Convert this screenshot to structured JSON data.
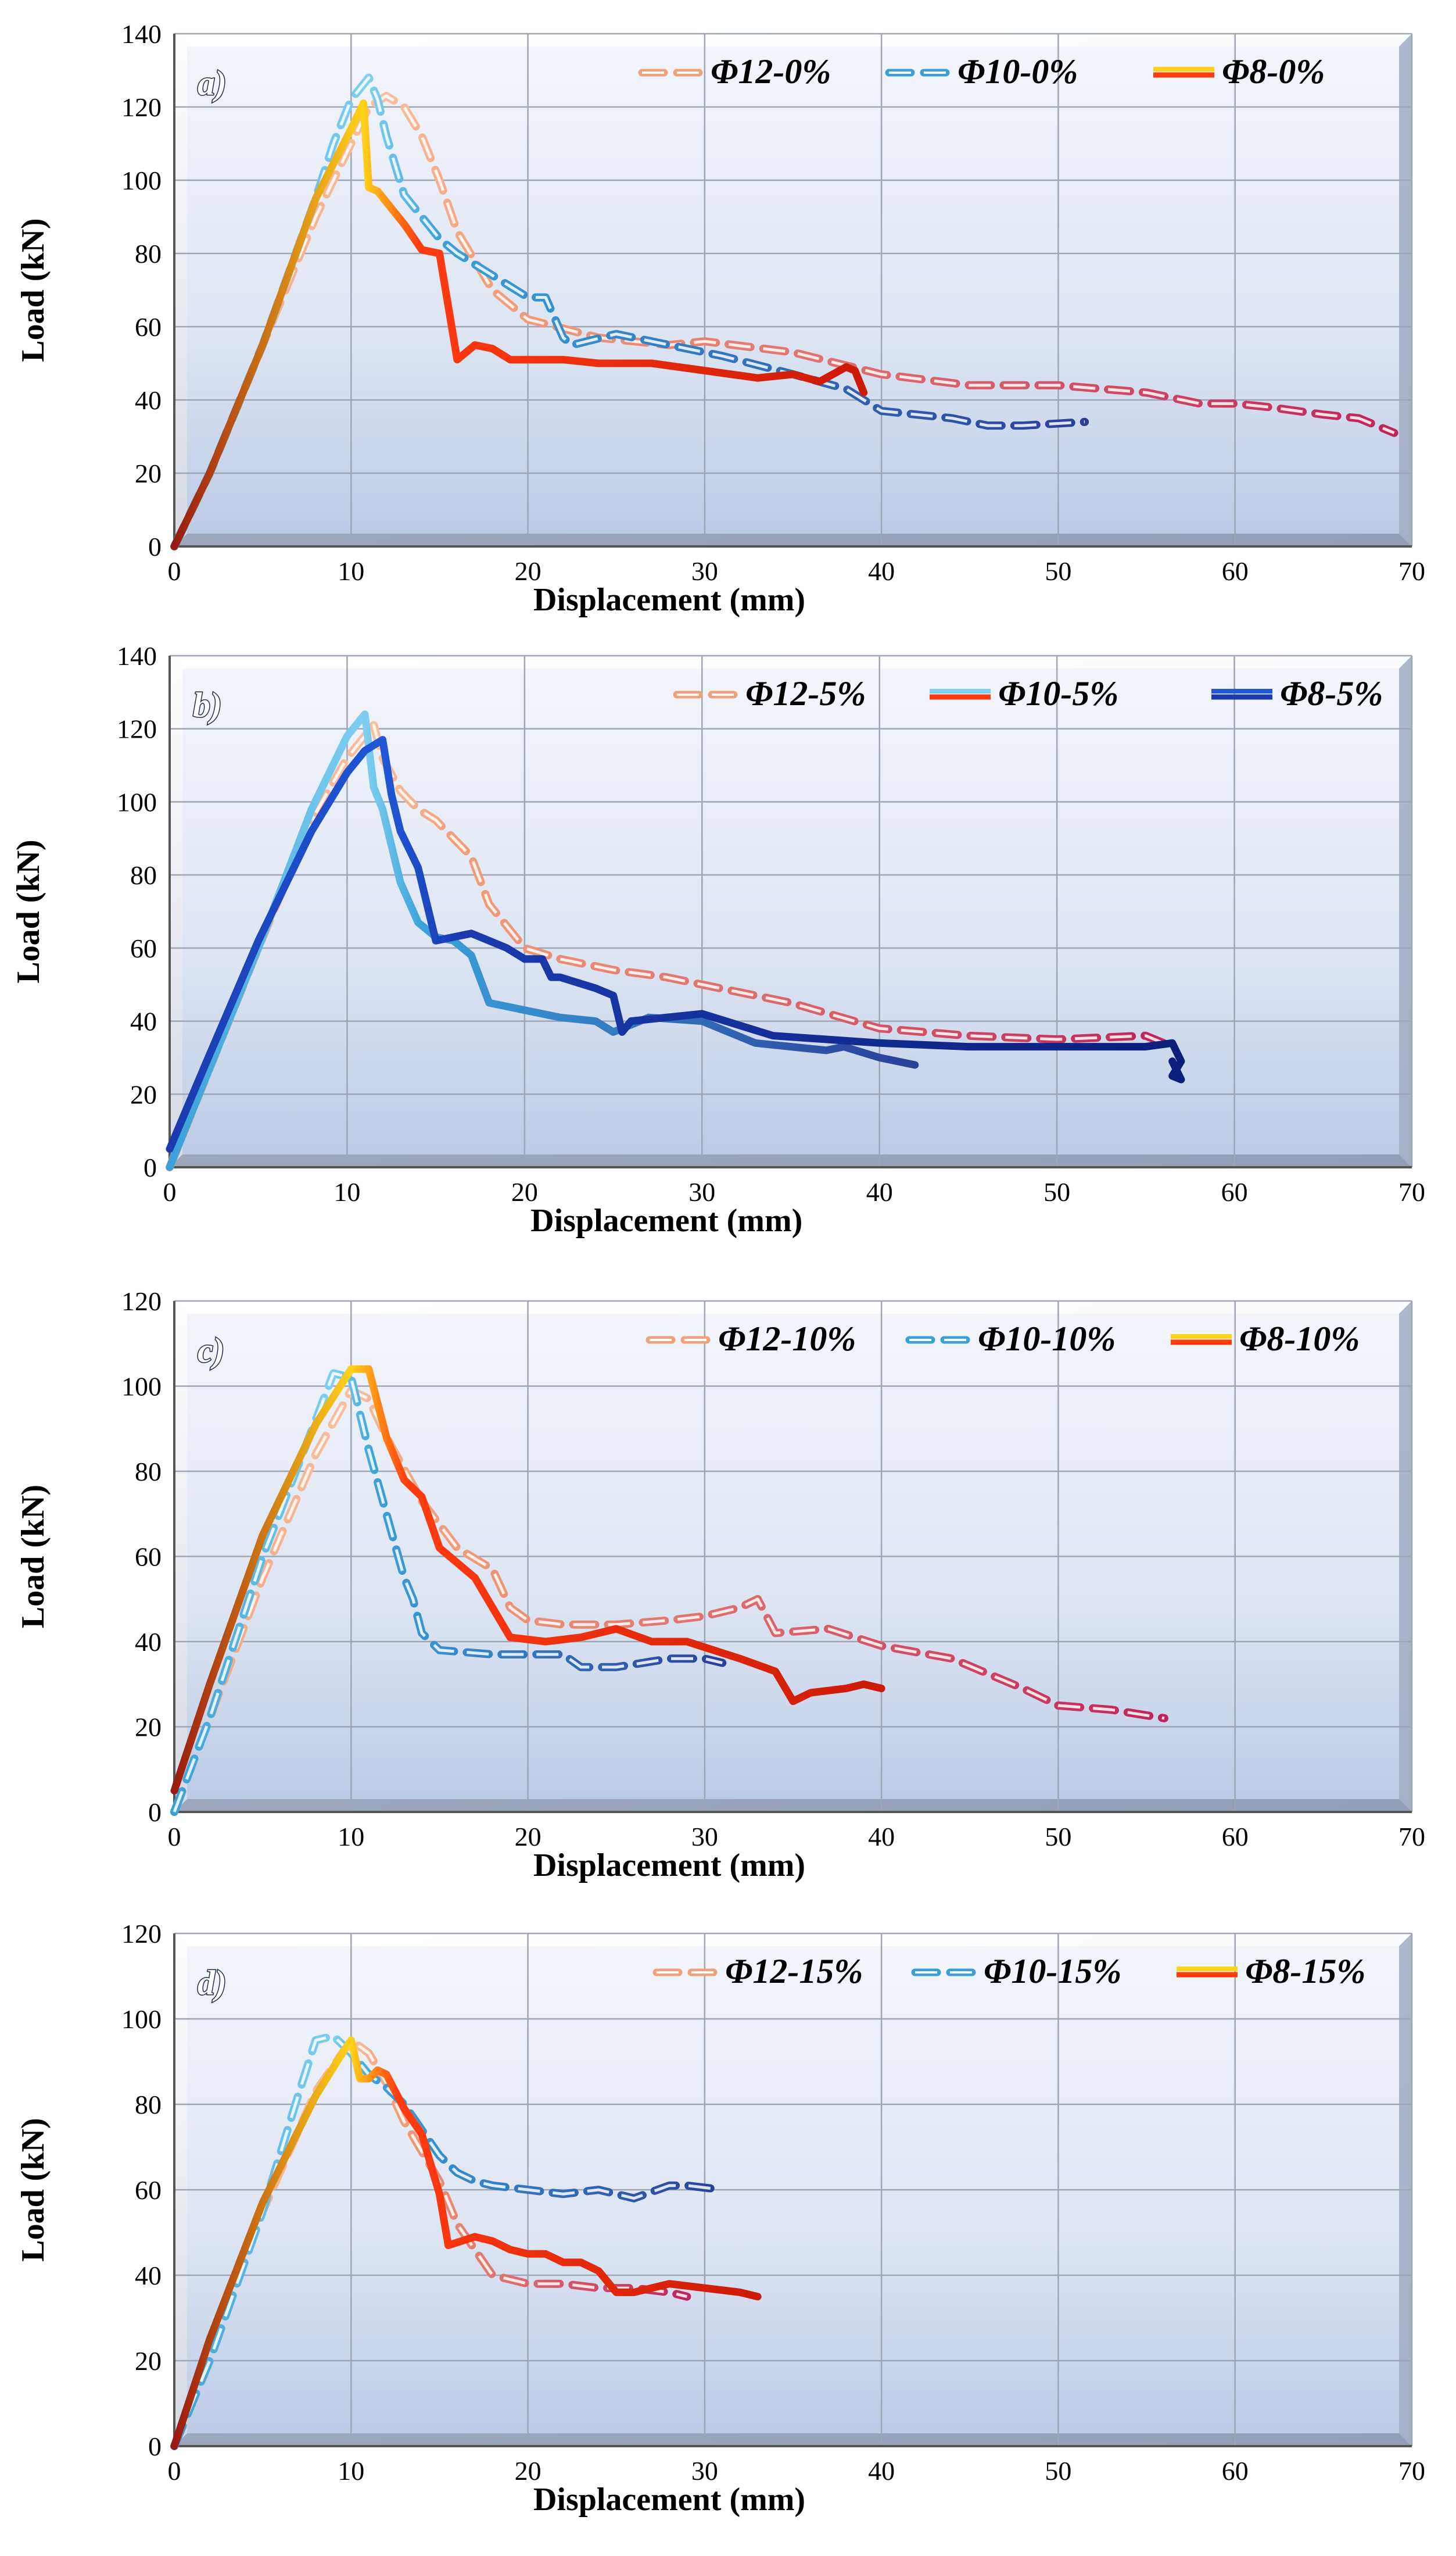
{
  "colors": {
    "plot_bg_top": "#eef2fa",
    "plot_bg_bottom": "#cfd9ec",
    "grid": "#9ea6b4",
    "phi12": "#f2a07a",
    "phi12_end": "#c0245a",
    "phi10": "#3aa0d8",
    "phi10_end": "#2a3f9a",
    "phi8": "#ff3b10",
    "phi8_peak": "#ffd21a",
    "phi8_5": "#1a2f9e"
  },
  "chart_data": [
    {
      "type": "line",
      "panel": "a)",
      "xlabel": "Displacement (mm)",
      "ylabel": "Load (kN)",
      "xlim": [
        0,
        70
      ],
      "ylim": [
        0,
        140
      ],
      "xticks": [
        "0",
        "10",
        "20",
        "30",
        "40",
        "50",
        "60",
        "70"
      ],
      "yticks": [
        "0",
        "20",
        "40",
        "60",
        "80",
        "100",
        "120",
        "140"
      ],
      "legend": [
        "Φ12-0%",
        "Φ10-0%",
        "Φ8-0%"
      ],
      "series": [
        {
          "name": "Φ12-0%",
          "style": "dashed",
          "x": [
            0,
            2,
            5,
            8,
            10,
            11,
            12,
            13,
            14,
            15,
            16,
            18,
            20,
            24,
            28,
            30,
            35,
            40,
            45,
            50,
            55,
            58,
            60,
            62,
            65,
            67,
            69
          ],
          "y": [
            0,
            20,
            55,
            90,
            110,
            120,
            123,
            120,
            112,
            100,
            86,
            70,
            62,
            57,
            55,
            56,
            53,
            47,
            44,
            44,
            42,
            39,
            39,
            38,
            36,
            35,
            31
          ]
        },
        {
          "name": "Φ10-0%",
          "style": "dashed",
          "x": [
            0,
            2,
            5,
            8,
            9,
            10,
            11,
            11.5,
            12,
            13,
            15,
            16,
            18,
            20,
            21,
            22,
            22.5,
            25,
            28,
            31,
            35,
            38,
            40,
            42,
            44,
            46,
            48,
            51.5
          ],
          "y": [
            0,
            20,
            55,
            95,
            110,
            122,
            128,
            122,
            112,
            96,
            84,
            80,
            74,
            68,
            68,
            57,
            55,
            58,
            55,
            52,
            47,
            43,
            37,
            36,
            35,
            33,
            33,
            34
          ]
        },
        {
          "name": "Φ8-0%",
          "style": "solid",
          "x": [
            0,
            2,
            5,
            8,
            10,
            10.7,
            11,
            11.5,
            13,
            14,
            15,
            16,
            17,
            18,
            19,
            20,
            22,
            24,
            27,
            30,
            33,
            35,
            36.5,
            38,
            38.5,
            39
          ],
          "y": [
            0,
            20,
            55,
            95,
            114,
            121,
            98,
            97,
            88,
            81,
            80,
            51,
            55,
            54,
            51,
            51,
            51,
            50,
            50,
            48,
            46,
            47,
            45,
            49,
            48,
            42
          ]
        }
      ]
    },
    {
      "type": "line",
      "panel": "b)",
      "xlabel": "Displacement (mm)",
      "ylabel": "Load (kN)",
      "xlim": [
        0,
        70
      ],
      "ylim": [
        0,
        140
      ],
      "xticks": [
        "0",
        "10",
        "20",
        "30",
        "40",
        "50",
        "60",
        "70"
      ],
      "yticks": [
        "0",
        "20",
        "40",
        "60",
        "80",
        "100",
        "120",
        "140"
      ],
      "legend": [
        "Φ12-5%",
        "Φ10-5%",
        "Φ8-5%"
      ],
      "series": [
        {
          "name": "Φ12-5%",
          "style": "dashed",
          "x": [
            0,
            2,
            5,
            8,
            10,
            11.5,
            12,
            13,
            14,
            15,
            17,
            18,
            20,
            22,
            25,
            28,
            30,
            35,
            40,
            45,
            50,
            55,
            56
          ],
          "y": [
            0,
            24,
            60,
            95,
            112,
            121,
            112,
            103,
            98,
            95,
            85,
            72,
            60,
            57,
            54,
            52,
            50,
            45,
            38,
            36,
            35,
            36,
            34
          ]
        },
        {
          "name": "Φ10-5%",
          "style": "solid",
          "x": [
            0,
            2,
            5,
            8,
            10,
            11,
            11.5,
            12,
            13,
            14,
            15,
            16,
            17,
            18,
            20,
            22,
            24,
            25,
            27,
            30,
            33,
            35,
            37,
            38,
            40,
            42
          ],
          "y": [
            0,
            24,
            60,
            98,
            118,
            124,
            104,
            98,
            78,
            67,
            63,
            62,
            58,
            45,
            43,
            41,
            40,
            37,
            41,
            40,
            34,
            33,
            32,
            33,
            30,
            28
          ]
        },
        {
          "name": "Φ8-5%",
          "style": "solid",
          "x": [
            0,
            2,
            5,
            8,
            10,
            11,
            12,
            12.5,
            13,
            14,
            15,
            16,
            17,
            18,
            19,
            20,
            21,
            21.5,
            22,
            24,
            25,
            25.5,
            26,
            28,
            30,
            34,
            40,
            45,
            50,
            55,
            56.5,
            57,
            56.5,
            57,
            56.5
          ],
          "y": [
            5,
            28,
            62,
            92,
            108,
            114,
            117,
            102,
            92,
            82,
            62,
            63,
            64,
            62,
            60,
            57,
            57,
            52,
            52,
            49,
            47,
            37,
            40,
            41,
            42,
            36,
            34,
            33,
            33,
            33,
            34,
            29,
            25,
            24,
            29
          ]
        }
      ]
    },
    {
      "type": "line",
      "panel": "c)",
      "xlabel": "Displacement (mm)",
      "ylabel": "Load (kN)",
      "xlim": [
        0,
        70
      ],
      "ylim": [
        0,
        120
      ],
      "xticks": [
        "0",
        "10",
        "20",
        "30",
        "40",
        "50",
        "60",
        "70"
      ],
      "yticks": [
        "0",
        "20",
        "40",
        "60",
        "80",
        "100",
        "120"
      ],
      "legend": [
        "Φ12-10%",
        "Φ10-10%",
        "Φ8-10%"
      ],
      "series": [
        {
          "name": "Φ12-10%",
          "style": "dashed",
          "x": [
            0,
            2,
            5,
            8,
            10,
            11,
            12,
            14,
            16,
            18,
            19,
            20,
            22,
            25,
            28,
            30,
            32,
            33,
            34,
            37,
            40,
            44,
            48,
            50,
            53,
            56
          ],
          "y": [
            0,
            22,
            55,
            84,
            99,
            97,
            88,
            73,
            62,
            57,
            48,
            45,
            44,
            44,
            45,
            46,
            48,
            50,
            42,
            43,
            39,
            36,
            29,
            25,
            24,
            22
          ]
        },
        {
          "name": "Φ10-10%",
          "style": "dashed",
          "x": [
            0,
            2,
            5,
            8,
            9,
            10,
            11,
            12,
            13,
            13.5,
            14,
            15,
            18,
            20,
            22,
            23,
            25,
            28,
            30,
            31
          ],
          "y": [
            0,
            22,
            60,
            92,
            103,
            102,
            85,
            70,
            55,
            50,
            42,
            38,
            37,
            37,
            37,
            34,
            34,
            36,
            36,
            35
          ]
        },
        {
          "name": "Φ8-10%",
          "style": "solid",
          "x": [
            0,
            2,
            5,
            8,
            10,
            11,
            12,
            13,
            14,
            15,
            17,
            18,
            19,
            21,
            23,
            25,
            27,
            29,
            32,
            34,
            35,
            36,
            38,
            39,
            40
          ],
          "y": [
            5,
            30,
            65,
            91,
            104,
            104,
            88,
            78,
            74,
            62,
            55,
            48,
            41,
            40,
            41,
            43,
            40,
            40,
            36,
            33,
            26,
            28,
            29,
            30,
            29
          ]
        }
      ]
    },
    {
      "type": "line",
      "panel": "d)",
      "xlabel": "Displacement (mm)",
      "ylabel": "Load (kN)",
      "xlim": [
        0,
        70
      ],
      "ylim": [
        0,
        120
      ],
      "xticks": [
        "0",
        "10",
        "20",
        "30",
        "40",
        "50",
        "60",
        "70"
      ],
      "yticks": [
        "0",
        "20",
        "40",
        "60",
        "80",
        "100",
        "120"
      ],
      "legend": [
        "Φ12-15%",
        "Φ10-15%",
        "Φ8-15%"
      ],
      "series": [
        {
          "name": "Φ12-15%",
          "style": "dashed",
          "x": [
            0,
            2,
            5,
            8,
            10,
            11,
            12,
            13,
            14,
            15,
            16,
            17,
            18,
            20,
            22,
            24,
            26,
            28,
            29
          ],
          "y": [
            0,
            22,
            55,
            83,
            95,
            92,
            85,
            76,
            69,
            62,
            52,
            46,
            40,
            38,
            38,
            37,
            37,
            36,
            35
          ]
        },
        {
          "name": "Φ10-15%",
          "style": "dashed",
          "x": [
            0,
            2,
            5,
            7,
            8,
            9,
            10,
            11,
            12,
            13,
            14,
            15,
            16,
            17,
            18,
            20,
            22,
            24,
            26,
            28,
            29,
            31
          ],
          "y": [
            0,
            20,
            55,
            82,
            95,
            96,
            92,
            87,
            84,
            80,
            74,
            68,
            64,
            62,
            61,
            60,
            59,
            60,
            58,
            61,
            61,
            60
          ]
        },
        {
          "name": "Φ8-15%",
          "style": "solid",
          "x": [
            0,
            2,
            5,
            8,
            9.5,
            10,
            10.5,
            11,
            11.5,
            12,
            13,
            14,
            15,
            15.5,
            17,
            18,
            19,
            20,
            21,
            22,
            23,
            24,
            25,
            26,
            27,
            28,
            30,
            32,
            33
          ],
          "y": [
            0,
            25,
            57,
            82,
            92,
            95,
            86,
            86,
            88,
            87,
            79,
            73,
            59,
            47,
            49,
            48,
            46,
            45,
            45,
            43,
            43,
            41,
            36,
            36,
            37,
            38,
            37,
            36,
            35
          ]
        }
      ]
    }
  ]
}
